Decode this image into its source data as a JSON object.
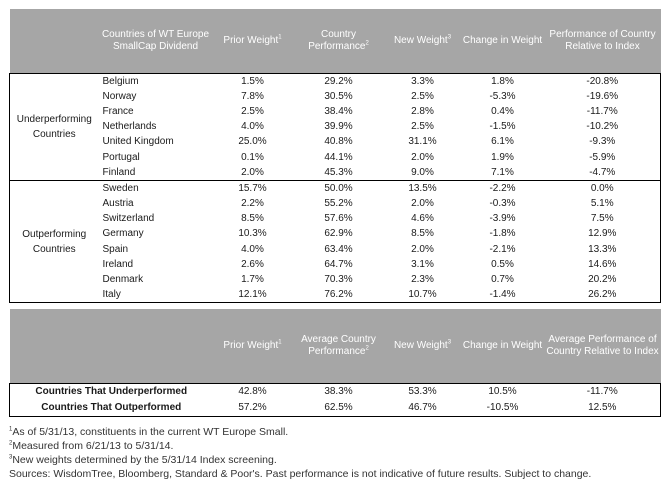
{
  "header": {
    "col_countries": "Countries of WT Europe SmallCap Dividend",
    "col_prior_weight": "Prior Weight",
    "col_prior_weight_sup": "1",
    "col_country_perf": "Country Performance",
    "col_country_perf_sup": "2",
    "col_new_weight": "New Weight",
    "col_new_weight_sup": "3",
    "col_change": "Change in Weight",
    "col_relative": "Performance of Country Relative to Index"
  },
  "groups": {
    "under_label": "Underperforming Countries",
    "out_label": "Outperforming Countries"
  },
  "under_rows": [
    {
      "country": "Belgium",
      "prior": "1.5%",
      "perf": "29.2%",
      "new": "3.3%",
      "change": "1.8%",
      "rel": "-20.8%"
    },
    {
      "country": "Norway",
      "prior": "7.8%",
      "perf": "30.5%",
      "new": "2.5%",
      "change": "-5.3%",
      "rel": "-19.6%"
    },
    {
      "country": "France",
      "prior": "2.5%",
      "perf": "38.4%",
      "new": "2.8%",
      "change": "0.4%",
      "rel": "-11.7%"
    },
    {
      "country": "Netherlands",
      "prior": "4.0%",
      "perf": "39.9%",
      "new": "2.5%",
      "change": "-1.5%",
      "rel": "-10.2%"
    },
    {
      "country": "United Kingdom",
      "prior": "25.0%",
      "perf": "40.8%",
      "new": "31.1%",
      "change": "6.1%",
      "rel": "-9.3%"
    },
    {
      "country": "Portugal",
      "prior": "0.1%",
      "perf": "44.1%",
      "new": "2.0%",
      "change": "1.9%",
      "rel": "-5.9%"
    },
    {
      "country": "Finland",
      "prior": "2.0%",
      "perf": "45.3%",
      "new": "9.0%",
      "change": "7.1%",
      "rel": "-4.7%"
    }
  ],
  "out_rows": [
    {
      "country": "Sweden",
      "prior": "15.7%",
      "perf": "50.0%",
      "new": "13.5%",
      "change": "-2.2%",
      "rel": "0.0%"
    },
    {
      "country": "Austria",
      "prior": "2.2%",
      "perf": "55.2%",
      "new": "2.0%",
      "change": "-0.3%",
      "rel": "5.1%"
    },
    {
      "country": "Switzerland",
      "prior": "8.5%",
      "perf": "57.6%",
      "new": "4.6%",
      "change": "-3.9%",
      "rel": "7.5%"
    },
    {
      "country": "Germany",
      "prior": "10.3%",
      "perf": "62.9%",
      "new": "8.5%",
      "change": "-1.8%",
      "rel": "12.9%"
    },
    {
      "country": "Spain",
      "prior": "4.0%",
      "perf": "63.4%",
      "new": "2.0%",
      "change": "-2.1%",
      "rel": "13.3%"
    },
    {
      "country": "Ireland",
      "prior": "2.6%",
      "perf": "64.7%",
      "new": "3.1%",
      "change": "0.5%",
      "rel": "14.6%"
    },
    {
      "country": "Denmark",
      "prior": "1.7%",
      "perf": "70.3%",
      "new": "2.3%",
      "change": "0.7%",
      "rel": "20.2%"
    },
    {
      "country": "Italy",
      "prior": "12.1%",
      "perf": "76.2%",
      "new": "10.7%",
      "change": "-1.4%",
      "rel": "26.2%"
    }
  ],
  "summary_header": {
    "col_prior_weight": "Prior Weight",
    "col_prior_weight_sup": "1",
    "col_avg_perf": "Average Country Performance",
    "col_avg_perf_sup": "2",
    "col_new_weight": "New Weight",
    "col_new_weight_sup": "3",
    "col_change": "Change in Weight",
    "col_avg_relative": "Average Performance of Country Relative to Index"
  },
  "summary_rows": [
    {
      "label": "Countries That Underperformed",
      "prior": "42.8%",
      "perf": "38.3%",
      "new": "53.3%",
      "change": "10.5%",
      "rel": "-11.7%"
    },
    {
      "label": "Countries That Outperformed",
      "prior": "57.2%",
      "perf": "62.5%",
      "new": "46.7%",
      "change": "-10.5%",
      "rel": "12.5%"
    }
  ],
  "footnotes": {
    "note1_sup": "1",
    "note1": "As of 5/31/13, constituents in the current WT Europe Small.",
    "note2_sup": "2",
    "note2": "Measured from 6/21/13 to 5/31/14.",
    "note3_sup": "3",
    "note3": "New weights determined by the 5/31/14 Index screening.",
    "sources": "Sources: WisdomTree, Bloomberg, Standard & Poor's. Past performance is not indicative of future results. Subject to change."
  }
}
